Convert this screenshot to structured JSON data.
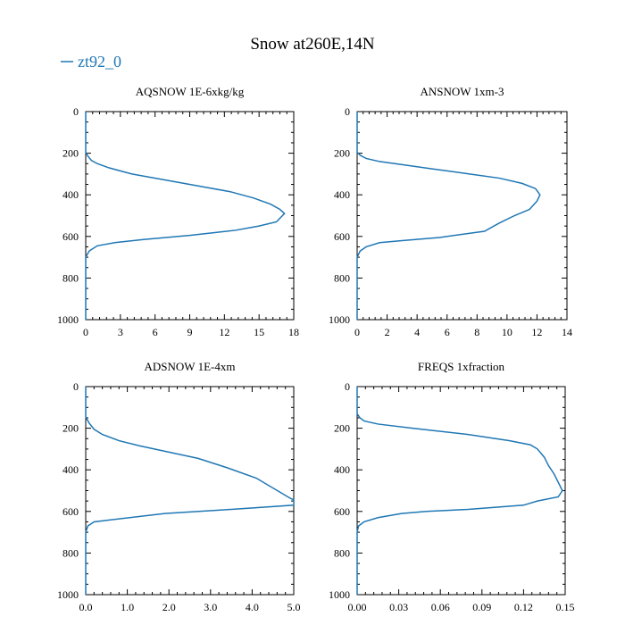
{
  "figure": {
    "title": "Snow at260E,14N",
    "legend": {
      "label": "zt92_0",
      "color": "#1f77b4"
    }
  },
  "chart_data": [
    {
      "type": "line",
      "title": "AQSNOW  1E-6xkg/kg",
      "xlabel": "",
      "ylabel": "",
      "xlim": [
        0,
        18
      ],
      "ylim": [
        1000,
        0
      ],
      "y_inverted": true,
      "xticks": [
        "0",
        "3",
        "6",
        "9",
        "12",
        "15",
        "18"
      ],
      "yticks": [
        "0",
        "200",
        "400",
        "600",
        "800",
        "1000"
      ],
      "series": [
        {
          "name": "zt92_0",
          "color": "#1f77b4",
          "x": [
            0,
            0,
            0.2,
            0.5,
            1.0,
            2.0,
            4.0,
            7.0,
            10.0,
            12.5,
            14.5,
            16.0,
            16.8,
            17.2,
            16.5,
            15.0,
            13.0,
            9.0,
            5.0,
            2.5,
            1.0,
            0.3,
            0,
            0
          ],
          "y": [
            0,
            195,
            215,
            235,
            250,
            270,
            300,
            330,
            360,
            385,
            415,
            445,
            470,
            490,
            530,
            550,
            570,
            595,
            615,
            630,
            645,
            670,
            700,
            1000
          ]
        }
      ]
    },
    {
      "type": "line",
      "title": "ANSNOW  1xm-3",
      "xlabel": "",
      "ylabel": "",
      "xlim": [
        0,
        14
      ],
      "ylim": [
        1000,
        0
      ],
      "y_inverted": true,
      "xticks": [
        "0",
        "2",
        "4",
        "6",
        "8",
        "10",
        "12",
        "14"
      ],
      "yticks": [
        "0",
        "200",
        "400",
        "600",
        "800",
        "1000"
      ],
      "series": [
        {
          "name": "zt92_0",
          "color": "#1f77b4",
          "x": [
            0,
            0,
            0.2,
            0.6,
            1.5,
            3.0,
            5.0,
            7.5,
            9.5,
            11.0,
            11.9,
            12.2,
            12.0,
            11.5,
            10.5,
            9.5,
            8.5,
            5.5,
            3.0,
            1.5,
            0.6,
            0.2,
            0,
            0
          ],
          "y": [
            0,
            195,
            210,
            225,
            240,
            255,
            275,
            300,
            320,
            345,
            370,
            400,
            430,
            470,
            500,
            535,
            575,
            605,
            620,
            630,
            650,
            670,
            700,
            1000
          ]
        }
      ]
    },
    {
      "type": "line",
      "title": "ADSNOW  1E-4xm",
      "xlabel": "",
      "ylabel": "",
      "xlim": [
        0,
        5
      ],
      "ylim": [
        1000,
        0
      ],
      "y_inverted": true,
      "xticks": [
        "0.0",
        "1.0",
        "2.0",
        "3.0",
        "4.0",
        "5.0"
      ],
      "yticks": [
        "0",
        "200",
        "400",
        "600",
        "800",
        "1000"
      ],
      "series": [
        {
          "name": "zt92_0",
          "color": "#1f77b4",
          "x": [
            0,
            0,
            0.08,
            0.2,
            0.4,
            0.8,
            1.3,
            2.0,
            2.7,
            3.4,
            4.1,
            4.9,
            5.0,
            5.0,
            3.5,
            1.9,
            0.2,
            0.05,
            0,
            0
          ],
          "y": [
            0,
            145,
            175,
            205,
            230,
            260,
            285,
            315,
            345,
            390,
            440,
            535,
            545,
            570,
            590,
            610,
            650,
            670,
            700,
            1000
          ]
        }
      ]
    },
    {
      "type": "line",
      "title": "FREQS  1xfraction",
      "xlabel": "",
      "ylabel": "",
      "xlim": [
        0,
        0.15
      ],
      "ylim": [
        1000,
        0
      ],
      "y_inverted": true,
      "xticks": [
        "0.00",
        "0.03",
        "0.06",
        "0.09",
        "0.12",
        "0.15"
      ],
      "yticks": [
        "0",
        "200",
        "400",
        "600",
        "800",
        "1000"
      ],
      "series": [
        {
          "name": "zt92_0",
          "color": "#1f77b4",
          "x": [
            0,
            0,
            0.002,
            0.005,
            0.015,
            0.04,
            0.08,
            0.11,
            0.125,
            0.13,
            0.135,
            0.138,
            0.142,
            0.145,
            0.148,
            0.145,
            0.13,
            0.12,
            0.08,
            0.05,
            0.032,
            0.015,
            0.005,
            0.001,
            0,
            0
          ],
          "y": [
            0,
            130,
            150,
            165,
            180,
            200,
            230,
            260,
            280,
            300,
            340,
            380,
            420,
            460,
            500,
            530,
            550,
            570,
            590,
            600,
            610,
            630,
            650,
            670,
            700,
            1000
          ]
        }
      ]
    }
  ]
}
